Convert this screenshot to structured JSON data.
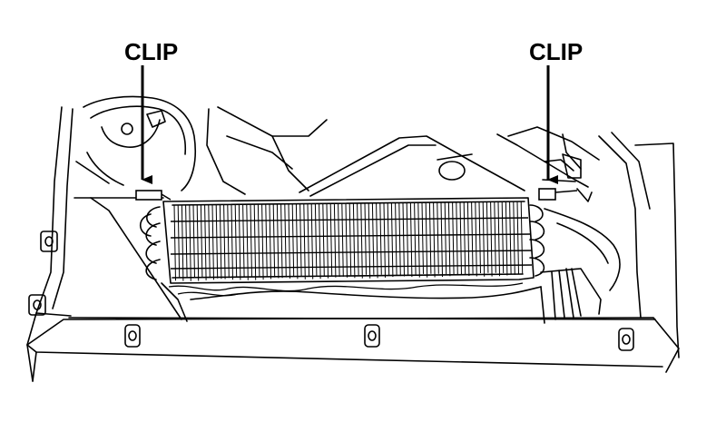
{
  "labels": {
    "clip_left": "CLIP",
    "clip_right": "CLIP"
  },
  "colors": {
    "ink": "#000000",
    "paper": "#ffffff"
  }
}
